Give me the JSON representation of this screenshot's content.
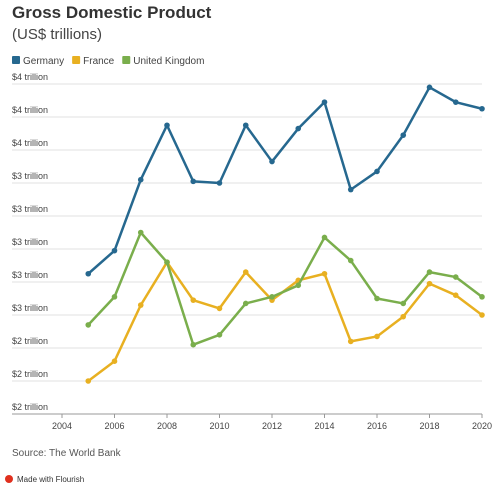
{
  "chart_data": {
    "type": "line",
    "title": "Gross Domestic Product",
    "subtitle": "(US$ trillions)",
    "source": "Source: The World Bank",
    "footer": "Made with Flourish",
    "x": [
      2005,
      2006,
      2007,
      2008,
      2009,
      2010,
      2011,
      2012,
      2013,
      2014,
      2015,
      2016,
      2017,
      2018,
      2019,
      2020
    ],
    "series": [
      {
        "name": "Germany",
        "color": "#26688f",
        "values": [
          2.85,
          2.99,
          3.42,
          3.75,
          3.41,
          3.4,
          3.75,
          3.53,
          3.73,
          3.89,
          3.36,
          3.47,
          3.69,
          3.98,
          3.89,
          3.85
        ]
      },
      {
        "name": "France",
        "color": "#e8b021",
        "values": [
          2.2,
          2.32,
          2.66,
          2.92,
          2.69,
          2.64,
          2.86,
          2.69,
          2.81,
          2.85,
          2.44,
          2.47,
          2.59,
          2.79,
          2.72,
          2.6
        ]
      },
      {
        "name": "United Kingdom",
        "color": "#7aae4c",
        "values": [
          2.54,
          2.71,
          3.1,
          2.92,
          2.42,
          2.48,
          2.67,
          2.71,
          2.78,
          3.07,
          2.93,
          2.7,
          2.67,
          2.86,
          2.83,
          2.71
        ]
      }
    ],
    "xlim": [
      2004,
      2020
    ],
    "xticks": [
      2004,
      2006,
      2008,
      2010,
      2012,
      2014,
      2016,
      2018,
      2020
    ],
    "ylim": [
      2.0,
      4.0
    ],
    "yticks": [
      {
        "value": 2.0,
        "label": "$2 trillion"
      },
      {
        "value": 2.2,
        "label": "$2 trillion"
      },
      {
        "value": 2.4,
        "label": "$2 trillion"
      },
      {
        "value": 2.6,
        "label": "$3 trillion"
      },
      {
        "value": 2.8,
        "label": "$3 trillion"
      },
      {
        "value": 3.0,
        "label": "$3 trillion"
      },
      {
        "value": 3.2,
        "label": "$3 trillion"
      },
      {
        "value": 3.4,
        "label": "$3 trillion"
      },
      {
        "value": 3.6,
        "label": "$4 trillion"
      },
      {
        "value": 3.8,
        "label": "$4 trillion"
      },
      {
        "value": 4.0,
        "label": "$4 trillion"
      }
    ],
    "grid": true
  }
}
